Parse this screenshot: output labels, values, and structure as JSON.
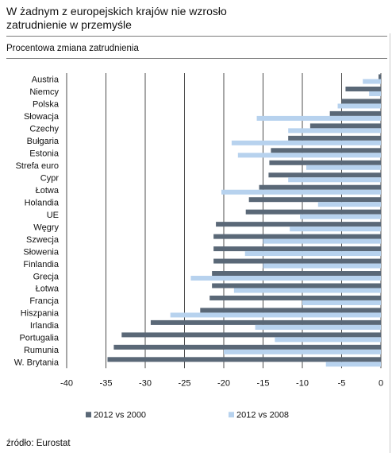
{
  "page": {
    "title_line1": "W żadnym z europejskich krajów nie wzrosło",
    "title_line2": "zatrudnienie w przemyśle",
    "subtitle": "Procentowa zmiana zatrudnienia",
    "source": "źródło: Eurostat"
  },
  "chart_data": {
    "type": "bar",
    "orientation": "horizontal",
    "xlim": [
      -40,
      0
    ],
    "x_ticks": [
      -40,
      -35,
      -30,
      -25,
      -20,
      -15,
      -10,
      -5,
      0
    ],
    "grid": true,
    "legend_position": "bottom",
    "categories": [
      "Austria",
      "Niemcy",
      "Polska",
      "Słowacja",
      "Czechy",
      "Bułgaria",
      "Estonia",
      "Strefa euro",
      "Cypr",
      "Łotwa",
      "Holandia",
      "UE",
      "Węgry",
      "Szwecja",
      "Słowenia",
      "Finlandia",
      "Grecja",
      "Łotwa",
      "Francja",
      "Hiszpania",
      "Irlandia",
      "Portugalia",
      "Rumunia",
      "W. Brytania"
    ],
    "series": [
      {
        "name": "2012 vs 2000",
        "color": "#5a6877",
        "values": [
          -0.3,
          -4.5,
          -5.0,
          -6.5,
          -9.0,
          -11.8,
          -14.0,
          -14.2,
          -14.3,
          -15.5,
          -16.8,
          -17.2,
          -21.0,
          -21.3,
          -21.3,
          -21.3,
          -21.5,
          -21.5,
          -21.8,
          -23.0,
          -29.3,
          -33.0,
          -34.0,
          -34.8
        ]
      },
      {
        "name": "2012 vs 2008",
        "color": "#b7d2ee",
        "values": [
          -2.3,
          -1.5,
          -5.5,
          -15.8,
          -11.8,
          -19.0,
          -18.2,
          -9.5,
          -11.8,
          -20.3,
          -8.0,
          -10.3,
          -11.6,
          -15.0,
          -17.3,
          -15.0,
          -24.2,
          -18.7,
          -10.0,
          -26.8,
          -16.0,
          -13.5,
          -20.0,
          -7.0
        ]
      }
    ]
  }
}
